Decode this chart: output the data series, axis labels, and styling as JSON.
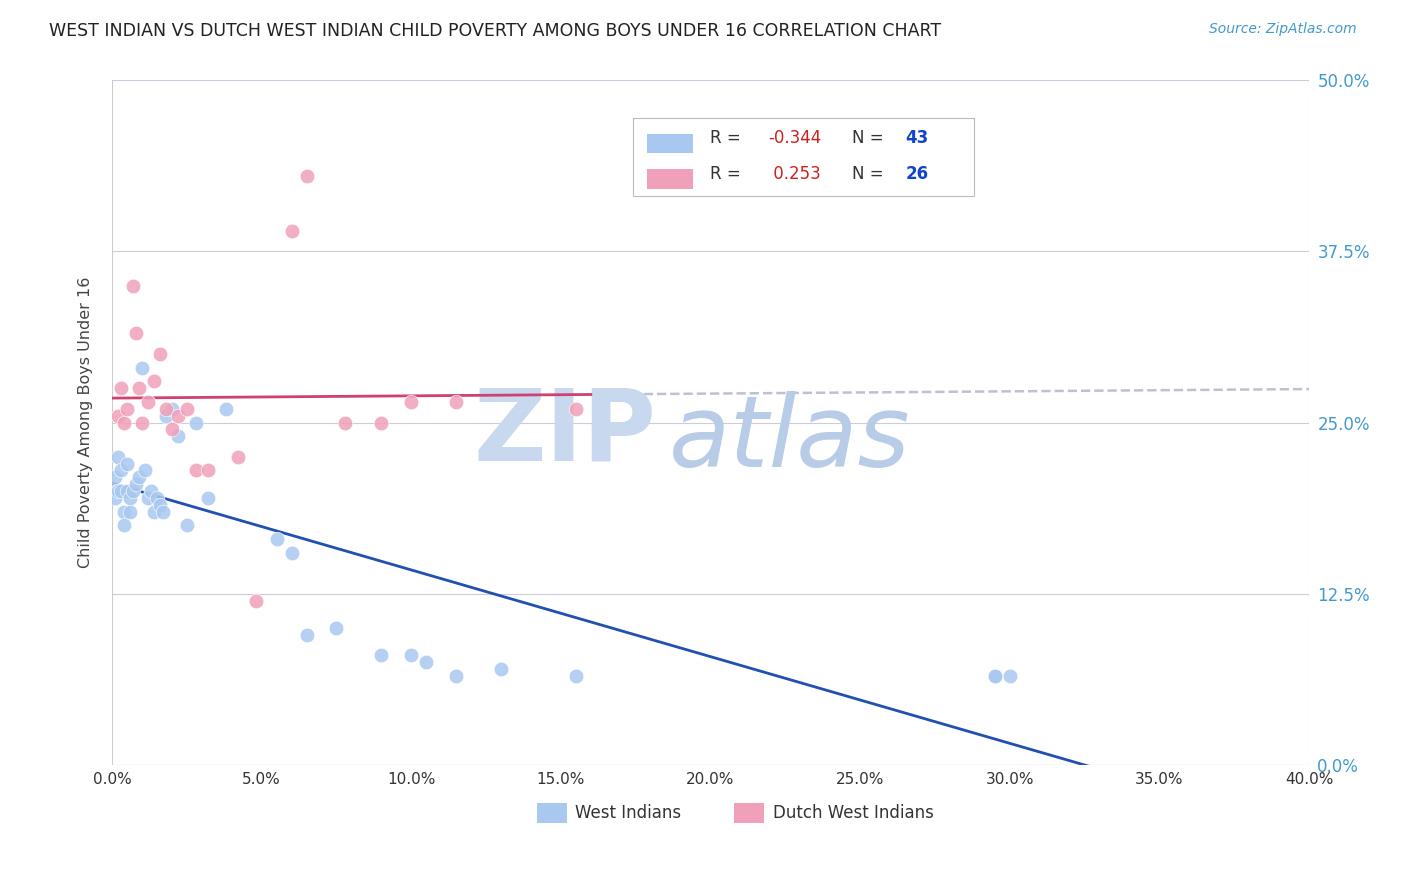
{
  "title": "WEST INDIAN VS DUTCH WEST INDIAN CHILD POVERTY AMONG BOYS UNDER 16 CORRELATION CHART",
  "source": "Source: ZipAtlas.com",
  "ylabel": "Child Poverty Among Boys Under 16",
  "xlim": [
    0.0,
    0.4
  ],
  "ylim": [
    0.0,
    0.5
  ],
  "color_blue": "#a8c8f0",
  "color_pink": "#f0a0b8",
  "line_blue": "#2050b0",
  "line_pink": "#d04070",
  "line_dashed_color": "#c0c0d0",
  "title_color": "#222222",
  "source_color": "#4499cc",
  "tick_color": "#4499cc",
  "ylabel_color": "#444444",
  "watermark_zip_color": "#c8d8ee",
  "watermark_atlas_color": "#b8cce8",
  "legend_r1_color": "#cc2222",
  "legend_n1_color": "#1144cc",
  "legend_r2_color": "#cc2222",
  "legend_n2_color": "#1144cc",
  "west_indian_x": [
    0.001,
    0.001,
    0.002,
    0.002,
    0.003,
    0.003,
    0.004,
    0.004,
    0.005,
    0.005,
    0.006,
    0.006,
    0.007,
    0.008,
    0.009,
    0.01,
    0.011,
    0.012,
    0.013,
    0.014,
    0.015,
    0.016,
    0.017,
    0.018,
    0.02,
    0.022,
    0.025,
    0.028,
    0.032,
    0.038,
    0.055,
    0.06,
    0.065,
    0.075,
    0.09,
    0.1,
    0.105,
    0.115,
    0.13,
    0.155,
    0.295,
    0.295,
    0.3
  ],
  "west_indian_y": [
    0.21,
    0.195,
    0.225,
    0.2,
    0.215,
    0.2,
    0.185,
    0.175,
    0.22,
    0.2,
    0.195,
    0.185,
    0.2,
    0.205,
    0.21,
    0.29,
    0.215,
    0.195,
    0.2,
    0.185,
    0.195,
    0.19,
    0.185,
    0.255,
    0.26,
    0.24,
    0.175,
    0.25,
    0.195,
    0.26,
    0.165,
    0.155,
    0.095,
    0.1,
    0.08,
    0.08,
    0.075,
    0.065,
    0.07,
    0.065,
    0.065,
    0.065,
    0.065
  ],
  "dutch_west_indian_x": [
    0.002,
    0.003,
    0.004,
    0.005,
    0.007,
    0.008,
    0.009,
    0.01,
    0.012,
    0.014,
    0.016,
    0.018,
    0.02,
    0.022,
    0.025,
    0.028,
    0.032,
    0.042,
    0.048,
    0.06,
    0.065,
    0.078,
    0.09,
    0.1,
    0.115,
    0.155
  ],
  "dutch_west_indian_y": [
    0.255,
    0.275,
    0.25,
    0.26,
    0.35,
    0.315,
    0.275,
    0.25,
    0.265,
    0.28,
    0.3,
    0.26,
    0.245,
    0.255,
    0.26,
    0.215,
    0.215,
    0.225,
    0.12,
    0.39,
    0.43,
    0.25,
    0.25,
    0.265,
    0.265,
    0.26
  ]
}
